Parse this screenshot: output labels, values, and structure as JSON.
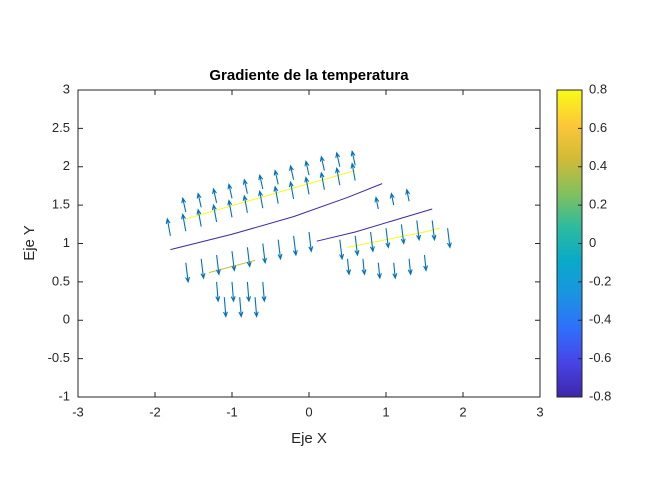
{
  "chart_data": {
    "type": "quiver",
    "title": "Gradiente de la temperatura",
    "xlabel": "Eje X",
    "ylabel": "Eje Y",
    "xlim": [
      -3,
      3
    ],
    "ylim": [
      -1,
      3
    ],
    "xticks": [
      -3,
      -2,
      -1,
      0,
      1,
      2,
      3
    ],
    "yticks": [
      -1,
      -0.5,
      0,
      0.5,
      1,
      1.5,
      2,
      2.5,
      3
    ],
    "color": "#0072bd",
    "quiver": {
      "x": [
        -1.8,
        -1.6,
        -1.4,
        -1.2,
        -1.0,
        -0.8,
        -0.6,
        -0.4,
        -0.2,
        0,
        0.2,
        0.4,
        0.6,
        -1.6,
        -1.4,
        -1.2,
        -1.0,
        -0.8,
        -0.6,
        -0.4,
        -0.2,
        0,
        0.2,
        0.4,
        0.6,
        -1.6,
        -1.4,
        -1.2,
        -1.0,
        -0.8,
        -0.6,
        -0.4,
        -0.2,
        0,
        -1.2,
        -1.0,
        -0.8,
        -0.6,
        -1.1,
        -0.9,
        -0.7,
        0.4,
        0.6,
        0.8,
        1.0,
        1.2,
        1.4,
        1.6,
        1.8,
        0.5,
        0.7,
        0.9,
        1.1,
        1.3,
        1.5,
        0.9,
        1.1,
        1.3
      ],
      "y": [
        1.1,
        1.16,
        1.22,
        1.28,
        1.34,
        1.4,
        1.46,
        1.52,
        1.58,
        1.64,
        1.7,
        1.76,
        1.82,
        1.41,
        1.47,
        1.53,
        1.59,
        1.65,
        1.71,
        1.77,
        1.83,
        1.89,
        1.95,
        2.0,
        2.02,
        0.75,
        0.8,
        0.85,
        0.9,
        0.95,
        1.0,
        1.05,
        1.1,
        1.15,
        0.5,
        0.5,
        0.5,
        0.5,
        0.3,
        0.3,
        0.3,
        1.05,
        1.1,
        1.15,
        1.2,
        1.25,
        1.3,
        1.3,
        1.2,
        0.8,
        0.8,
        0.75,
        0.75,
        0.8,
        0.85,
        1.45,
        1.5,
        1.55
      ],
      "u": [
        -0.04,
        -0.04,
        -0.04,
        -0.04,
        -0.04,
        -0.04,
        -0.04,
        -0.04,
        -0.04,
        -0.04,
        -0.04,
        -0.04,
        -0.04,
        -0.04,
        -0.04,
        -0.04,
        -0.04,
        -0.04,
        -0.04,
        -0.04,
        -0.04,
        -0.04,
        -0.04,
        -0.04,
        -0.04,
        0.03,
        0.03,
        0.03,
        0.03,
        0.03,
        0.03,
        0.03,
        0.03,
        0.03,
        0.02,
        0.02,
        0.02,
        0.02,
        0.02,
        0.02,
        0.02,
        0.03,
        0.03,
        0.03,
        0.03,
        0.03,
        0.03,
        0.03,
        0.03,
        0.02,
        0.02,
        0.02,
        0.02,
        0.02,
        0.02,
        -0.03,
        -0.03,
        -0.03
      ],
      "v": [
        0.22,
        0.22,
        0.22,
        0.22,
        0.22,
        0.22,
        0.22,
        0.22,
        0.22,
        0.22,
        0.22,
        0.22,
        0.22,
        0.18,
        0.18,
        0.18,
        0.18,
        0.18,
        0.18,
        0.18,
        0.18,
        0.18,
        0.18,
        0.18,
        0.18,
        -0.25,
        -0.25,
        -0.25,
        -0.25,
        -0.25,
        -0.25,
        -0.25,
        -0.25,
        -0.25,
        -0.25,
        -0.25,
        -0.25,
        -0.25,
        -0.25,
        -0.25,
        -0.25,
        -0.25,
        -0.25,
        -0.25,
        -0.25,
        -0.25,
        -0.25,
        -0.25,
        -0.25,
        -0.2,
        -0.2,
        -0.2,
        -0.2,
        -0.2,
        -0.2,
        0.15,
        0.15,
        0.15
      ]
    },
    "contours": [
      {
        "level": -0.8,
        "x": [
          -1.8,
          -1.0,
          -0.2,
          0.5,
          0.95
        ],
        "y": [
          0.92,
          1.12,
          1.35,
          1.6,
          1.78
        ]
      },
      {
        "level": -0.8,
        "x": [
          0.1,
          0.6,
          1.1,
          1.6
        ],
        "y": [
          1.03,
          1.15,
          1.3,
          1.45
        ]
      },
      {
        "level": 0.8,
        "x": [
          -1.6,
          -0.8,
          0,
          0.6
        ],
        "y": [
          1.32,
          1.55,
          1.78,
          1.95
        ]
      },
      {
        "level": 0.8,
        "x": [
          0.5,
          1.0,
          1.5,
          1.7
        ],
        "y": [
          0.95,
          1.05,
          1.15,
          1.2
        ]
      },
      {
        "level": 0.4,
        "x": [
          -1.3,
          -1.0,
          -0.7
        ],
        "y": [
          0.62,
          0.7,
          0.78
        ]
      }
    ],
    "colorbar": {
      "clim": [
        -0.8,
        0.8
      ],
      "ticks": [
        -0.8,
        -0.6,
        -0.4,
        -0.2,
        0,
        0.2,
        0.4,
        0.6,
        0.8
      ],
      "colormap": [
        "#3e26a8",
        "#4744e6",
        "#2f6ffb",
        "#1a94e2",
        "#09aac8",
        "#2ebb9e",
        "#85c05b",
        "#d3ba37",
        "#fdc838",
        "#f9fb15"
      ]
    }
  }
}
